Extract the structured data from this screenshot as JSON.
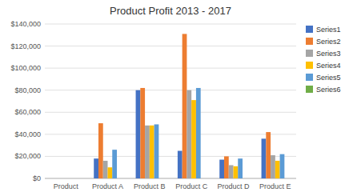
{
  "chart_data": {
    "type": "bar",
    "title": "Product Profit 2013 - 2017",
    "categories": [
      "Product",
      "Product A",
      "Product B",
      "Product C",
      "Product D",
      "Product E"
    ],
    "series": [
      {
        "name": "Series1",
        "color": "#4472C4",
        "values": [
          0,
          18000,
          80000,
          25000,
          17000,
          36000
        ]
      },
      {
        "name": "Series2",
        "color": "#ED7D31",
        "values": [
          0,
          50000,
          82000,
          131000,
          20000,
          42000
        ]
      },
      {
        "name": "Series3",
        "color": "#A5A5A5",
        "values": [
          0,
          16000,
          48000,
          80000,
          12000,
          21000
        ]
      },
      {
        "name": "Series4",
        "color": "#FFC000",
        "values": [
          0,
          10000,
          48000,
          71000,
          11000,
          16000
        ]
      },
      {
        "name": "Series5",
        "color": "#5B9BD5",
        "values": [
          0,
          26000,
          49000,
          82000,
          18000,
          22000
        ]
      },
      {
        "name": "Series6",
        "color": "#70AD47",
        "values": [
          0,
          0,
          0,
          0,
          0,
          0
        ]
      }
    ],
    "ylim": [
      0,
      140000
    ],
    "yticks": [
      {
        "value": 0,
        "label": "$0"
      },
      {
        "value": 20000,
        "label": "$20,000"
      },
      {
        "value": 40000,
        "label": "$40,000"
      },
      {
        "value": 60000,
        "label": "$60,000"
      },
      {
        "value": 80000,
        "label": "$80,000"
      },
      {
        "value": 100000,
        "label": "$100,000"
      },
      {
        "value": 120000,
        "label": "$120,000"
      },
      {
        "value": 140000,
        "label": "$140,000"
      }
    ],
    "grid": true,
    "legend": "right"
  }
}
